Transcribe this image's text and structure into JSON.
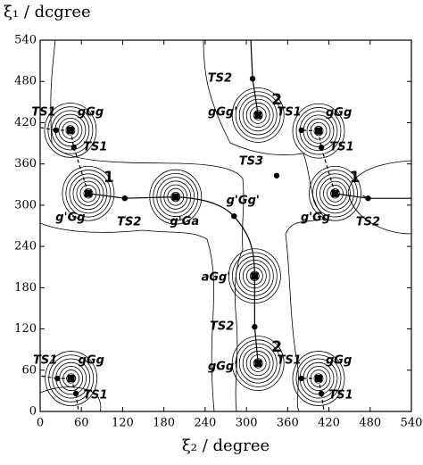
{
  "chart_data": {
    "type": "scatter",
    "xlabel": "ξ₂ / degree",
    "ylabel": "ξ₁ / dcgree",
    "xlim": [
      0,
      540
    ],
    "ylim": [
      0,
      540
    ],
    "xticks": [
      0,
      60,
      120,
      180,
      240,
      300,
      360,
      420,
      480,
      540
    ],
    "yticks": [
      0,
      60,
      120,
      180,
      240,
      300,
      360,
      420,
      480,
      540
    ],
    "points": [
      {
        "x": 70,
        "y": 317,
        "marker": "square",
        "label": "g'Gg",
        "tag": "1"
      },
      {
        "x": 123,
        "y": 310,
        "marker": "circle",
        "label": "TS2"
      },
      {
        "x": 197,
        "y": 312,
        "marker": "square",
        "label": "g'Ga"
      },
      {
        "x": 282,
        "y": 284,
        "marker": "circle",
        "label": "g'Gg'"
      },
      {
        "x": 312,
        "y": 197,
        "marker": "square",
        "label": "aGg'"
      },
      {
        "x": 312,
        "y": 123,
        "marker": "circle",
        "label": "TS2"
      },
      {
        "x": 317,
        "y": 70,
        "marker": "square",
        "label": "gGg'",
        "tag": "2"
      },
      {
        "x": 317,
        "y": 431,
        "marker": "square",
        "label": "gGg'",
        "tag": "2"
      },
      {
        "x": 309,
        "y": 484,
        "marker": "circle",
        "label": "TS2"
      },
      {
        "x": 344,
        "y": 343,
        "marker": "circle",
        "label": "TS3"
      },
      {
        "x": 44,
        "y": 409,
        "marker": "square",
        "label": "gGg"
      },
      {
        "x": 23,
        "y": 409,
        "marker": "circle",
        "label": "TS1"
      },
      {
        "x": 49,
        "y": 384,
        "marker": "circle",
        "label": "TS1"
      },
      {
        "x": 405,
        "y": 408,
        "marker": "square",
        "label": "gGg"
      },
      {
        "x": 380,
        "y": 409,
        "marker": "circle",
        "label": "TS1"
      },
      {
        "x": 409,
        "y": 384,
        "marker": "circle",
        "label": "TS1"
      },
      {
        "x": 429,
        "y": 317,
        "marker": "square",
        "label": "g'Gg",
        "tag": "1"
      },
      {
        "x": 477,
        "y": 310,
        "marker": "circle",
        "label": "TS2"
      },
      {
        "x": 45,
        "y": 48,
        "marker": "square",
        "label": "gGg"
      },
      {
        "x": 25,
        "y": 48,
        "marker": "circle",
        "label": "TS1"
      },
      {
        "x": 52,
        "y": 26,
        "marker": "circle",
        "label": "TS1"
      },
      {
        "x": 405,
        "y": 48,
        "marker": "square",
        "label": "gGg"
      },
      {
        "x": 380,
        "y": 48,
        "marker": "circle",
        "label": "TS1"
      },
      {
        "x": 409,
        "y": 26,
        "marker": "circle",
        "label": "TS1"
      }
    ]
  }
}
